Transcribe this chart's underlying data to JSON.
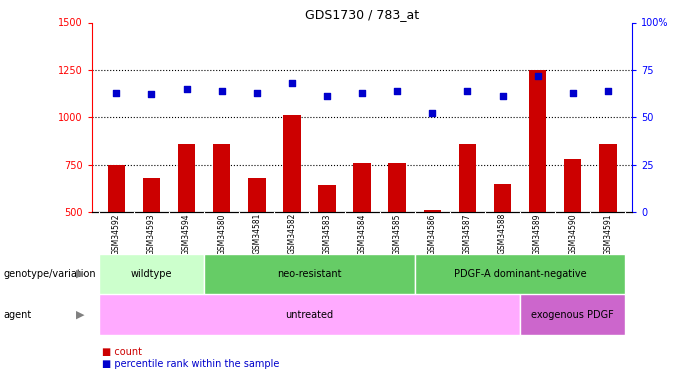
{
  "title": "GDS1730 / 783_at",
  "samples": [
    "GSM34592",
    "GSM34593",
    "GSM34594",
    "GSM34580",
    "GSM34581",
    "GSM34582",
    "GSM34583",
    "GSM34584",
    "GSM34585",
    "GSM34586",
    "GSM34587",
    "GSM34588",
    "GSM34589",
    "GSM34590",
    "GSM34591"
  ],
  "counts": [
    750,
    680,
    860,
    860,
    680,
    1010,
    640,
    760,
    760,
    510,
    860,
    645,
    1250,
    780,
    860
  ],
  "percentiles": [
    63,
    62,
    65,
    64,
    63,
    68,
    61,
    63,
    64,
    52,
    64,
    61,
    72,
    63,
    64
  ],
  "ylim_left": [
    500,
    1500
  ],
  "ylim_right": [
    0,
    100
  ],
  "yticks_left": [
    500,
    750,
    1000,
    1250,
    1500
  ],
  "yticks_right": [
    0,
    25,
    50,
    75,
    100
  ],
  "bar_color": "#cc0000",
  "dot_color": "#0000cc",
  "groups": [
    {
      "label": "wildtype",
      "start": 0,
      "end": 3,
      "color": "#ccffcc"
    },
    {
      "label": "neo-resistant",
      "start": 3,
      "end": 9,
      "color": "#66cc66"
    },
    {
      "label": "PDGF-A dominant-negative",
      "start": 9,
      "end": 15,
      "color": "#66cc66"
    }
  ],
  "group_colors": [
    "#ccffcc",
    "#66cc66",
    "#66cc66"
  ],
  "agents": [
    {
      "label": "untreated",
      "start": 0,
      "end": 12
    },
    {
      "label": "exogenous PDGF",
      "start": 12,
      "end": 15
    }
  ],
  "agent_colors": [
    "#ffaaff",
    "#cc66cc"
  ],
  "genotype_label": "genotype/variation",
  "agent_label": "agent",
  "legend_count": "count",
  "legend_percentile": "percentile rank within the sample",
  "background_color": "#ffffff",
  "label_area_color": "#cccccc"
}
